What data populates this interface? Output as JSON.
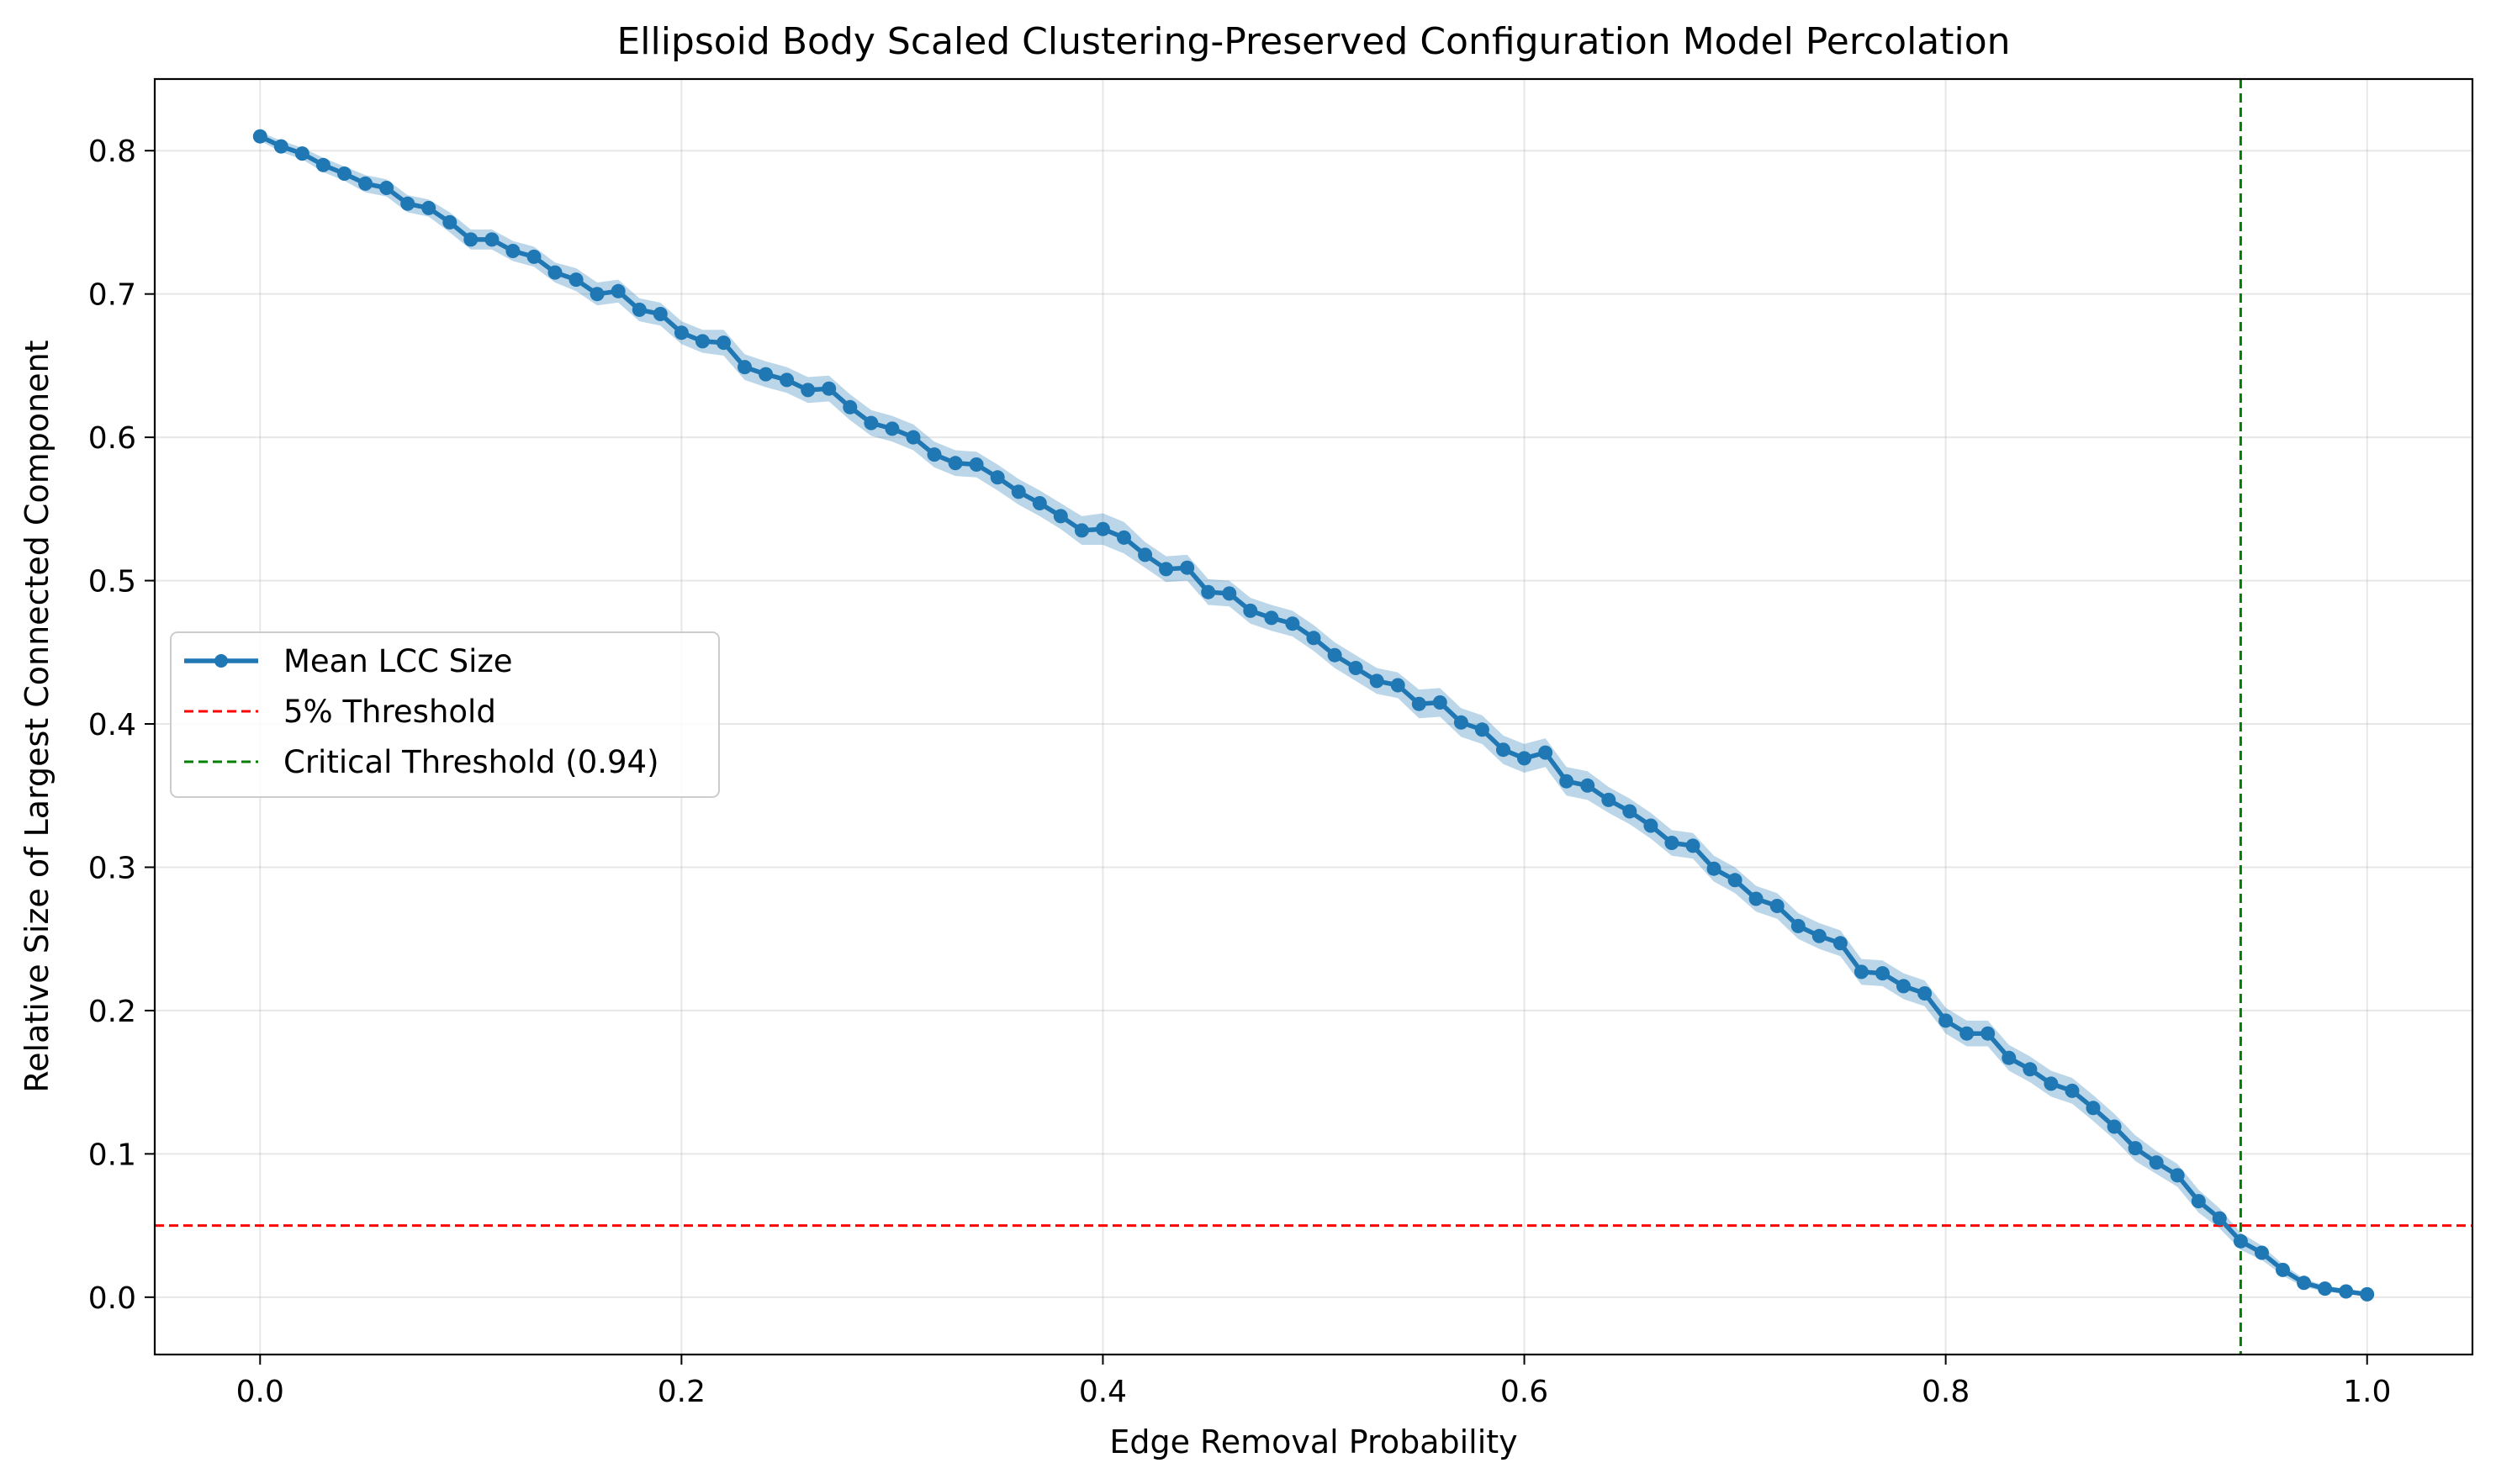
{
  "chart_data": {
    "type": "line",
    "title": "Ellipsoid Body Scaled Clustering-Preserved Configuration Model Percolation",
    "xlabel": "Edge Removal Probability",
    "ylabel": "Relative Size of Largest Connected Component",
    "xlim": [
      -0.05,
      1.05
    ],
    "ylim": [
      -0.04,
      0.85
    ],
    "xticks": [
      0.0,
      0.2,
      0.4,
      0.6,
      0.8,
      1.0
    ],
    "xtick_labels": [
      "0.0",
      "0.2",
      "0.4",
      "0.6",
      "0.8",
      "1.0"
    ],
    "yticks": [
      0.0,
      0.1,
      0.2,
      0.3,
      0.4,
      0.5,
      0.6,
      0.7,
      0.8
    ],
    "ytick_labels": [
      "0.0",
      "0.1",
      "0.2",
      "0.3",
      "0.4",
      "0.5",
      "0.6",
      "0.7",
      "0.8"
    ],
    "grid": true,
    "legend_position": "center-left",
    "series": [
      {
        "name": "Mean LCC Size",
        "color": "#1f77b4",
        "band_color": "#1f77b4",
        "x": [
          0.0,
          0.01,
          0.02,
          0.03,
          0.04,
          0.05,
          0.06,
          0.07,
          0.08,
          0.09,
          0.1,
          0.11,
          0.12,
          0.13,
          0.14,
          0.15,
          0.16,
          0.17,
          0.18,
          0.19,
          0.2,
          0.21,
          0.22,
          0.23,
          0.24,
          0.25,
          0.26,
          0.27,
          0.28,
          0.29,
          0.3,
          0.31,
          0.32,
          0.33,
          0.34,
          0.35,
          0.36,
          0.37,
          0.38,
          0.39,
          0.4,
          0.41,
          0.42,
          0.43,
          0.44,
          0.45,
          0.46,
          0.47,
          0.48,
          0.49,
          0.5,
          0.51,
          0.52,
          0.53,
          0.54,
          0.55,
          0.56,
          0.57,
          0.58,
          0.59,
          0.6,
          0.61,
          0.62,
          0.63,
          0.64,
          0.65,
          0.66,
          0.67,
          0.68,
          0.69,
          0.7,
          0.71,
          0.72,
          0.73,
          0.74,
          0.75,
          0.76,
          0.77,
          0.78,
          0.79,
          0.8,
          0.81,
          0.82,
          0.83,
          0.84,
          0.85,
          0.86,
          0.87,
          0.88,
          0.89,
          0.9,
          0.91,
          0.92,
          0.93,
          0.94,
          0.95,
          0.96,
          0.97,
          0.98,
          0.99,
          1.0
        ],
        "y": [
          0.81,
          0.803,
          0.798,
          0.79,
          0.784,
          0.777,
          0.774,
          0.763,
          0.76,
          0.75,
          0.738,
          0.738,
          0.73,
          0.726,
          0.715,
          0.71,
          0.7,
          0.702,
          0.689,
          0.686,
          0.673,
          0.667,
          0.666,
          0.649,
          0.644,
          0.64,
          0.633,
          0.634,
          0.621,
          0.61,
          0.606,
          0.6,
          0.588,
          0.582,
          0.581,
          0.572,
          0.562,
          0.554,
          0.545,
          0.535,
          0.536,
          0.53,
          0.518,
          0.508,
          0.509,
          0.492,
          0.491,
          0.479,
          0.474,
          0.47,
          0.46,
          0.448,
          0.439,
          0.43,
          0.427,
          0.414,
          0.415,
          0.401,
          0.396,
          0.382,
          0.376,
          0.38,
          0.36,
          0.357,
          0.347,
          0.339,
          0.329,
          0.317,
          0.315,
          0.299,
          0.291,
          0.278,
          0.273,
          0.259,
          0.252,
          0.247,
          0.227,
          0.226,
          0.217,
          0.212,
          0.193,
          0.184,
          0.184,
          0.167,
          0.159,
          0.149,
          0.144,
          0.132,
          0.119,
          0.104,
          0.094,
          0.085,
          0.067,
          0.055,
          0.039,
          0.031,
          0.019,
          0.01,
          0.006,
          0.004,
          0.002
        ],
        "band_halfwidth": [
          0.003,
          0.004,
          0.004,
          0.005,
          0.005,
          0.006,
          0.006,
          0.006,
          0.006,
          0.007,
          0.007,
          0.007,
          0.007,
          0.007,
          0.007,
          0.008,
          0.008,
          0.008,
          0.008,
          0.008,
          0.008,
          0.008,
          0.009,
          0.009,
          0.009,
          0.009,
          0.009,
          0.009,
          0.009,
          0.009,
          0.009,
          0.009,
          0.009,
          0.009,
          0.009,
          0.009,
          0.009,
          0.009,
          0.009,
          0.01,
          0.011,
          0.011,
          0.009,
          0.009,
          0.009,
          0.009,
          0.009,
          0.009,
          0.009,
          0.009,
          0.009,
          0.009,
          0.009,
          0.009,
          0.009,
          0.01,
          0.01,
          0.01,
          0.01,
          0.01,
          0.01,
          0.01,
          0.01,
          0.01,
          0.009,
          0.009,
          0.009,
          0.009,
          0.009,
          0.009,
          0.009,
          0.009,
          0.009,
          0.009,
          0.009,
          0.009,
          0.009,
          0.009,
          0.009,
          0.009,
          0.009,
          0.009,
          0.009,
          0.009,
          0.009,
          0.009,
          0.009,
          0.009,
          0.009,
          0.009,
          0.008,
          0.008,
          0.008,
          0.007,
          0.006,
          0.005,
          0.004,
          0.003,
          0.002,
          0.002,
          0.001
        ]
      }
    ],
    "reference_lines": [
      {
        "name": "5% Threshold",
        "orientation": "horizontal",
        "value": 0.05,
        "color": "#ff0000",
        "style": "dashed"
      },
      {
        "name": "Critical Threshold (0.94)",
        "orientation": "vertical",
        "value": 0.94,
        "color": "#008000",
        "style": "dashed"
      }
    ]
  }
}
